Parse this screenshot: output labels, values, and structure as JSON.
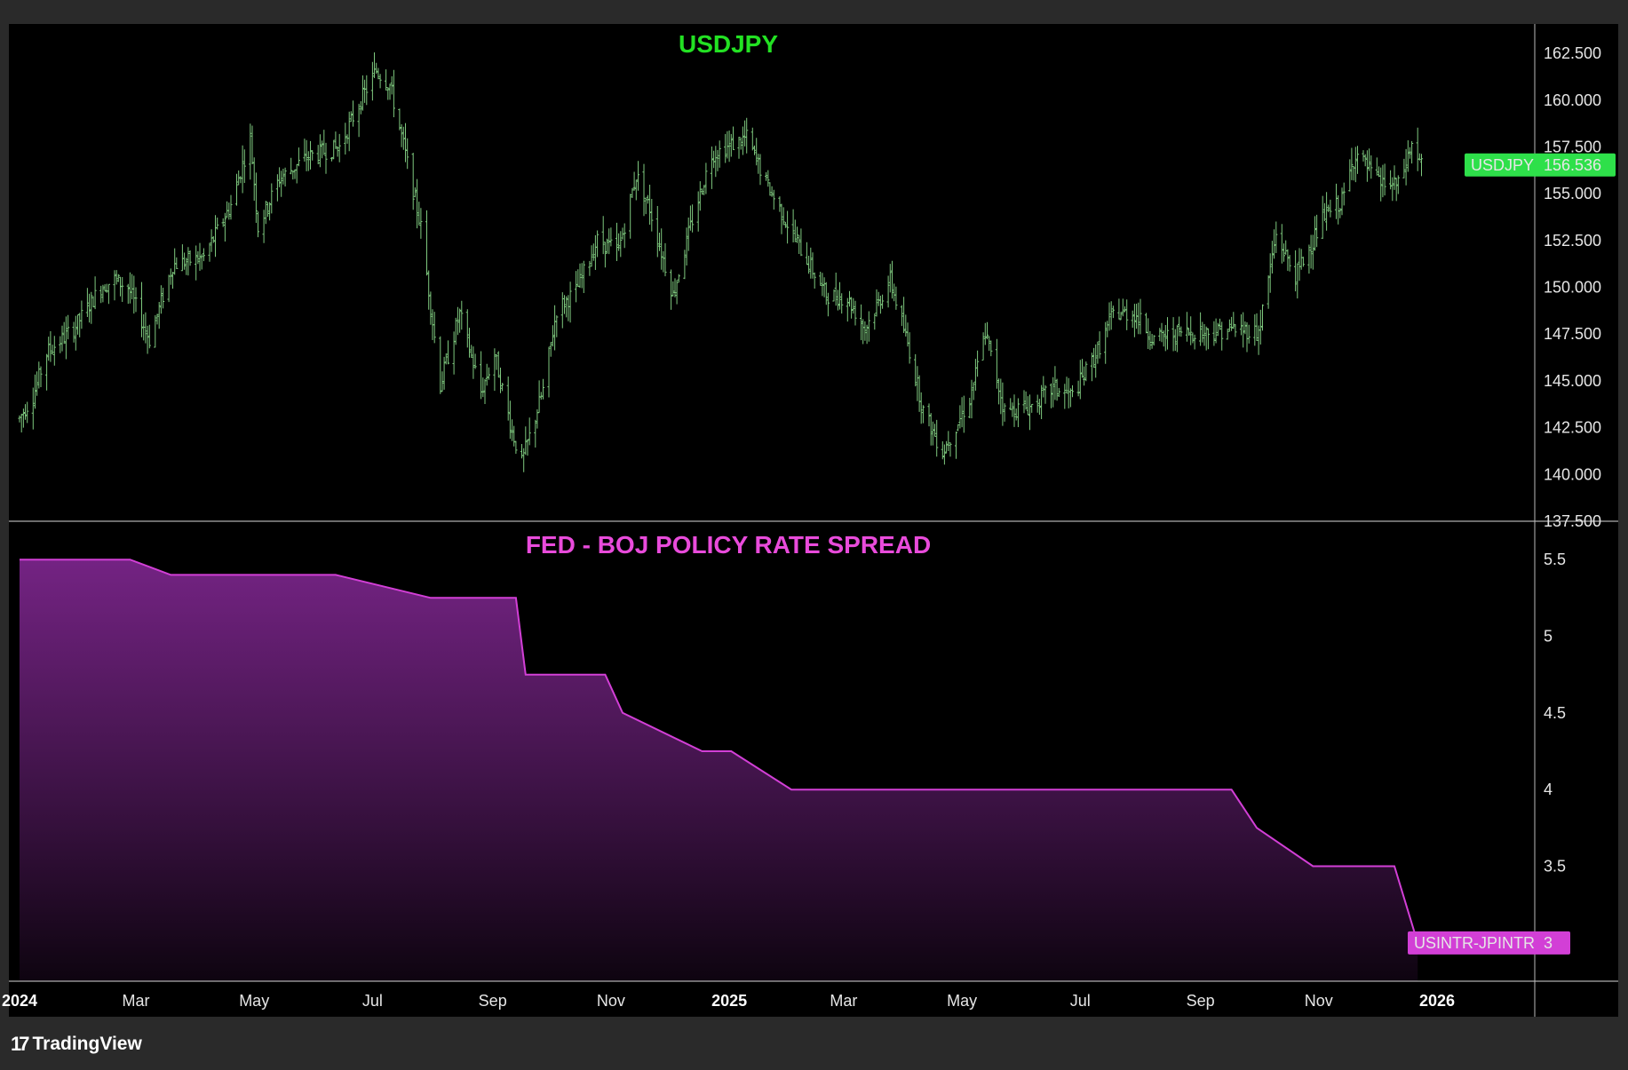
{
  "chart_data": [
    {
      "type": "bar",
      "style": "ohlc",
      "title": "USDJPY",
      "title_color": "#23e123",
      "series_color": "#7ec87e",
      "price_label": {
        "name": "USDJPY",
        "value": "156.536",
        "color": "#2ee04a"
      },
      "y_ticks": [
        "137.500",
        "140.000",
        "142.500",
        "145.000",
        "147.500",
        "150.000",
        "152.500",
        "155.000",
        "157.500",
        "160.000",
        "162.500"
      ],
      "ylim": [
        137.5,
        163.5
      ],
      "keypoints": [
        [
          "2024-01-01",
          143.0
        ],
        [
          "2024-01-08",
          144.2
        ],
        [
          "2024-01-15",
          146.5
        ],
        [
          "2024-01-29",
          147.8
        ],
        [
          "2024-02-12",
          150.0
        ],
        [
          "2024-02-19",
          150.4
        ],
        [
          "2024-02-26",
          150.0
        ],
        [
          "2024-03-08",
          147.2
        ],
        [
          "2024-03-20",
          151.2
        ],
        [
          "2024-04-05",
          151.6
        ],
        [
          "2024-04-19",
          154.4
        ],
        [
          "2024-04-29",
          158.0
        ],
        [
          "2024-05-03",
          153.2
        ],
        [
          "2024-05-14",
          155.8
        ],
        [
          "2024-05-29",
          157.0
        ],
        [
          "2024-06-14",
          157.5
        ],
        [
          "2024-06-26",
          160.2
        ],
        [
          "2024-07-03",
          161.6
        ],
        [
          "2024-07-10",
          160.8
        ],
        [
          "2024-07-17",
          157.6
        ],
        [
          "2024-07-26",
          153.2
        ],
        [
          "2024-08-05",
          144.8
        ],
        [
          "2024-08-15",
          148.6
        ],
        [
          "2024-08-26",
          144.4
        ],
        [
          "2024-09-02",
          146.4
        ],
        [
          "2024-09-11",
          142.3
        ],
        [
          "2024-09-16",
          140.6
        ],
        [
          "2024-09-27",
          144.5
        ],
        [
          "2024-10-04",
          148.8
        ],
        [
          "2024-10-14",
          149.8
        ],
        [
          "2024-10-25",
          152.5
        ],
        [
          "2024-11-05",
          152.0
        ],
        [
          "2024-11-14",
          156.0
        ],
        [
          "2024-11-21",
          154.2
        ],
        [
          "2024-12-03",
          149.6
        ],
        [
          "2024-12-13",
          153.6
        ],
        [
          "2024-12-23",
          157.1
        ],
        [
          "2025-01-10",
          158.0
        ],
        [
          "2025-01-20",
          155.6
        ],
        [
          "2025-02-05",
          152.4
        ],
        [
          "2025-02-20",
          149.6
        ],
        [
          "2025-03-03",
          149.4
        ],
        [
          "2025-03-12",
          147.8
        ],
        [
          "2025-03-25",
          150.4
        ],
        [
          "2025-04-04",
          146.6
        ],
        [
          "2025-04-11",
          143.4
        ],
        [
          "2025-04-21",
          141.2
        ],
        [
          "2025-05-05",
          144.0
        ],
        [
          "2025-05-13",
          147.6
        ],
        [
          "2025-05-23",
          143.4
        ],
        [
          "2025-06-05",
          143.6
        ],
        [
          "2025-06-17",
          144.6
        ],
        [
          "2025-06-27",
          144.2
        ],
        [
          "2025-07-10",
          146.6
        ],
        [
          "2025-07-18",
          148.6
        ],
        [
          "2025-07-29",
          148.6
        ],
        [
          "2025-08-08",
          147.2
        ],
        [
          "2025-08-22",
          147.6
        ],
        [
          "2025-09-05",
          147.6
        ],
        [
          "2025-09-19",
          147.8
        ],
        [
          "2025-10-01",
          147.6
        ],
        [
          "2025-10-10",
          152.8
        ],
        [
          "2025-10-20",
          150.6
        ],
        [
          "2025-11-04",
          153.8
        ],
        [
          "2025-11-13",
          154.6
        ],
        [
          "2025-11-20",
          157.2
        ],
        [
          "2025-12-02",
          155.6
        ],
        [
          "2025-12-12",
          155.4
        ],
        [
          "2025-12-19",
          157.6
        ],
        [
          "2025-12-24",
          156.5
        ]
      ]
    },
    {
      "type": "area",
      "title": "FED - BOJ POLICY RATE SPREAD",
      "title_color": "#e94bdb",
      "line_color": "#d23fd6",
      "series_name": "USINTR-JPINTR",
      "price_label": {
        "name": "USINTR-JPINTR",
        "value": "3",
        "color": "#d23fd6"
      },
      "y_ticks": [
        "3.5",
        "4",
        "4.5",
        "5",
        "5.5"
      ],
      "ylim": [
        2.75,
        5.75
      ],
      "x": [
        "2024-01-01",
        "2024-02-27",
        "2024-03-19",
        "2024-06-12",
        "2024-07-31",
        "2024-09-13",
        "2024-09-18",
        "2024-10-29",
        "2024-11-07",
        "2024-12-18",
        "2025-01-02",
        "2025-02-02",
        "2025-09-17",
        "2025-09-30",
        "2025-10-29",
        "2025-11-17",
        "2025-12-10",
        "2025-12-22"
      ],
      "y": [
        5.5,
        5.5,
        5.4,
        5.4,
        5.25,
        5.25,
        4.75,
        4.75,
        4.5,
        4.25,
        4.25,
        4.0,
        4.0,
        3.75,
        3.5,
        3.5,
        3.5,
        3.0
      ]
    }
  ],
  "time_axis": {
    "labels": [
      {
        "date": "2024-01-01",
        "text": "2024",
        "year": true
      },
      {
        "date": "2024-03-01",
        "text": "Mar",
        "year": false
      },
      {
        "date": "2024-05-01",
        "text": "May",
        "year": false
      },
      {
        "date": "2024-07-01",
        "text": "Jul",
        "year": false
      },
      {
        "date": "2024-09-01",
        "text": "Sep",
        "year": false
      },
      {
        "date": "2024-11-01",
        "text": "Nov",
        "year": false
      },
      {
        "date": "2025-01-01",
        "text": "2025",
        "year": true
      },
      {
        "date": "2025-03-01",
        "text": "Mar",
        "year": false
      },
      {
        "date": "2025-05-01",
        "text": "May",
        "year": false
      },
      {
        "date": "2025-07-01",
        "text": "Jul",
        "year": false
      },
      {
        "date": "2025-09-01",
        "text": "Sep",
        "year": false
      },
      {
        "date": "2025-11-01",
        "text": "Nov",
        "year": false
      },
      {
        "date": "2026-01-01",
        "text": "2026",
        "year": true
      }
    ]
  },
  "branding": {
    "logo_mark": "17",
    "logo_text": "TradingView"
  }
}
